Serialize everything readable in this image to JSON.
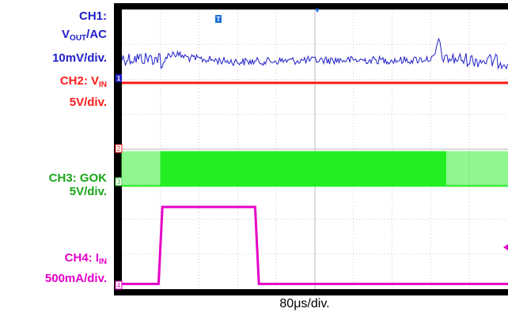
{
  "labels": {
    "ch1_title": "CH1:",
    "ch1_v": "V",
    "ch1_sub": "OUT",
    "ch1_ac": "/AC",
    "ch1_scale": "10mV/div.",
    "ch2_prefix": "CH2: V",
    "ch2_sub": "IN",
    "ch2_scale": "5V/div.",
    "ch3_title": "CH3: GOK",
    "ch3_scale": "5V/div.",
    "ch4_prefix": "CH4: I",
    "ch4_sub": "IN",
    "ch4_scale": "500mA/div."
  },
  "markers": {
    "m1": "1",
    "m2": "2",
    "m3": "3",
    "m4": "4"
  },
  "chart_data": {
    "type": "line",
    "xlabel": "80μs/div.",
    "grid": true,
    "x_divisions": 10,
    "y_divisions": 8,
    "colors": {
      "ch1": "#1f1fc8",
      "ch2": "#ff1a1a",
      "ch3": "#22ee22",
      "ch4": "#e600c8",
      "background": "#ffffff",
      "frame": "#000000"
    },
    "series": [
      {
        "name": "CH1: VOUT/AC",
        "values_div": [
          [
            0.0,
            6.6
          ],
          [
            0.99,
            6.6
          ],
          [
            1.02,
            6.2
          ],
          [
            1.1,
            6.6
          ],
          [
            1.3,
            6.75
          ],
          [
            1.8,
            6.6
          ],
          [
            3.0,
            6.5
          ],
          [
            5.0,
            6.55
          ],
          [
            7.5,
            6.55
          ],
          [
            8.1,
            6.6
          ],
          [
            8.2,
            7.2
          ],
          [
            8.3,
            6.6
          ],
          [
            10.0,
            6.5
          ]
        ]
      },
      {
        "name": "CH2: VIN",
        "values_div": [
          [
            0.0,
            5.9
          ],
          [
            10.0,
            5.9
          ]
        ]
      },
      {
        "name": "CH3: GOK",
        "values_div": [
          [
            0.0,
            3.45
          ],
          [
            10.0,
            3.45
          ]
        ]
      },
      {
        "name": "CH4: IIN",
        "values_div": [
          [
            0.0,
            0.15
          ],
          [
            0.95,
            0.15
          ],
          [
            1.05,
            2.35
          ],
          [
            3.45,
            2.35
          ],
          [
            3.55,
            0.15
          ],
          [
            10.0,
            0.15
          ]
        ]
      }
    ]
  }
}
